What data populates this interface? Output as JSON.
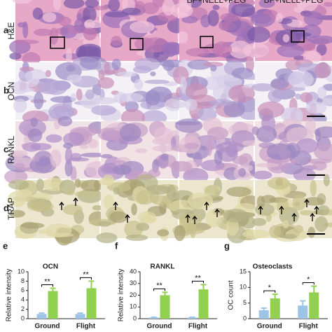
{
  "figure": {
    "column_headers": [
      "BF+NELL+PEG",
      "BF+NELL+PEG"
    ],
    "rows": [
      {
        "letter": "a",
        "label": "H&E"
      },
      {
        "letter": "b",
        "label": "OCN"
      },
      {
        "letter": "c",
        "label": "RANKL"
      },
      {
        "letter": "d",
        "label": "TRAP"
      }
    ]
  },
  "chart_data": [
    {
      "type": "bar",
      "letter": "e",
      "title": "OCN",
      "ylabel": "Relative intensity",
      "categories": [
        "Ground",
        "Flight"
      ],
      "series": [
        {
          "color": "#9dc3e6",
          "values": [
            1.0,
            1.0
          ],
          "errors": [
            0.2,
            0.2
          ]
        },
        {
          "color": "#92d050",
          "values": [
            5.9,
            6.5
          ],
          "errors": [
            0.6,
            1.5
          ]
        }
      ],
      "annotations": [
        "**",
        "**"
      ],
      "ylim": [
        0,
        10
      ],
      "yticks": [
        0,
        2,
        4,
        6,
        8,
        10
      ]
    },
    {
      "type": "bar",
      "letter": "f",
      "title": "RANKL",
      "ylabel": "Relative intensity",
      "categories": [
        "Ground",
        "Flight"
      ],
      "series": [
        {
          "color": "#9dc3e6",
          "values": [
            1,
            1
          ],
          "errors": [
            0.3,
            0.3
          ]
        },
        {
          "color": "#92d050",
          "values": [
            20,
            25
          ],
          "errors": [
            2.5,
            4
          ]
        }
      ],
      "annotations": [
        "**",
        "**"
      ],
      "ylim": [
        0,
        40
      ],
      "yticks": [
        0,
        10,
        20,
        30,
        40
      ]
    },
    {
      "type": "bar",
      "letter": "g",
      "title": "Osteoclasts",
      "ylabel": "OC count",
      "categories": [
        "Ground",
        "Flight"
      ],
      "series": [
        {
          "color": "#9dc3e6",
          "values": [
            2.7,
            4.2
          ],
          "errors": [
            0.7,
            1.5
          ]
        },
        {
          "color": "#92d050",
          "values": [
            6.5,
            8.4
          ],
          "errors": [
            1.3,
            2
          ]
        }
      ],
      "annotations": [
        "*",
        "*"
      ],
      "ylim": [
        0,
        15
      ],
      "yticks": [
        0,
        5,
        10,
        15
      ]
    }
  ]
}
